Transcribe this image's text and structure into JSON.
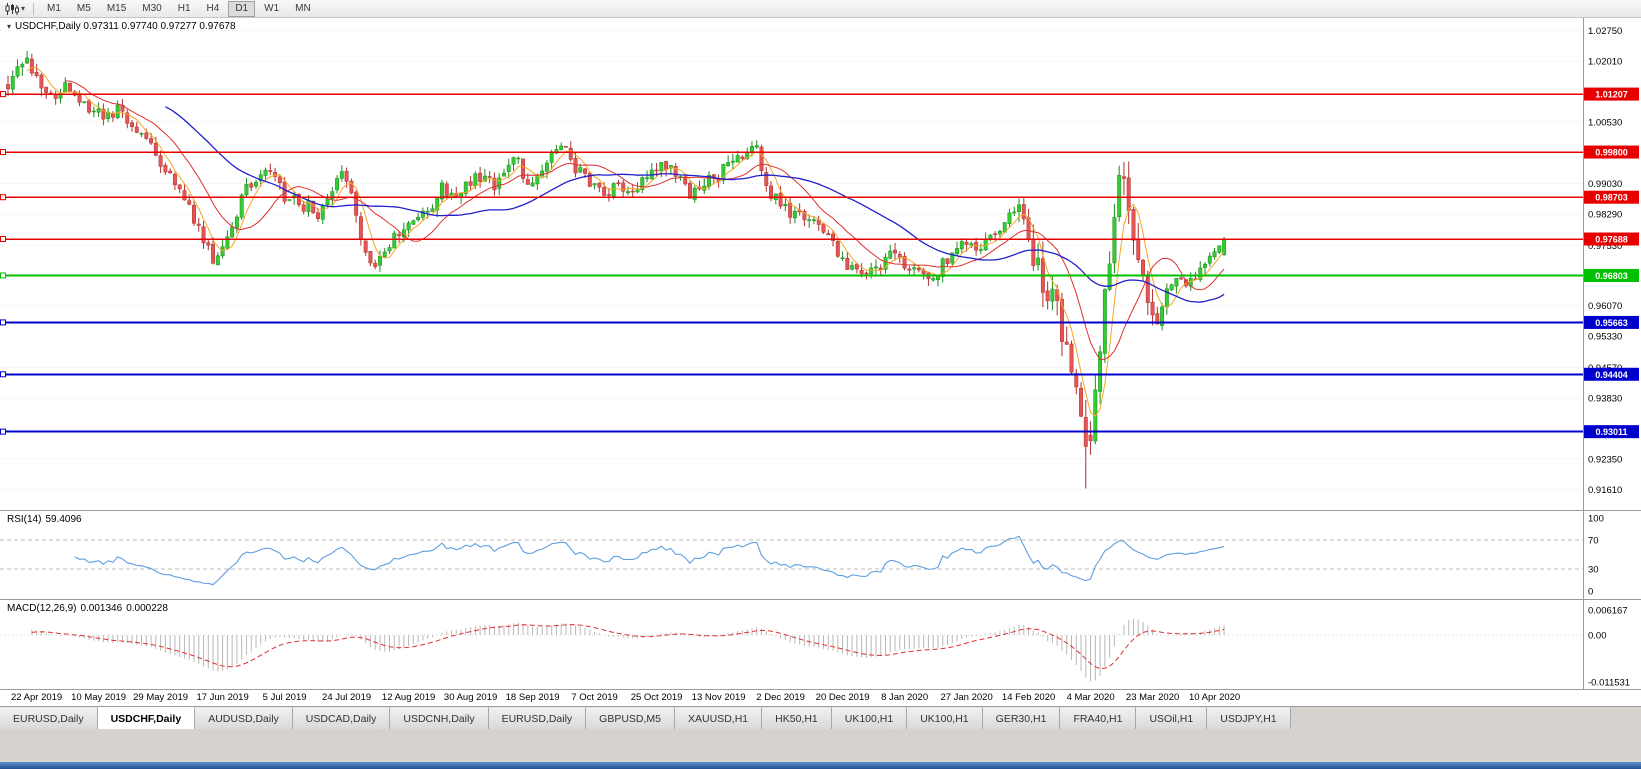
{
  "toolbar": {
    "timeframes": [
      "M1",
      "M5",
      "M15",
      "M30",
      "H1",
      "H4",
      "D1",
      "W1",
      "MN"
    ],
    "active": "D1",
    "chart_type_icon": "candlestick-chart-icon",
    "dropdown_icon": "▾"
  },
  "main_chart": {
    "collapse_icon": "▾",
    "title": "USDCHF,Daily 0.97311 0.97740 0.97277 0.97678"
  },
  "chart_data": {
    "type": "candlestick",
    "symbol": "USDCHF",
    "timeframe": "Daily",
    "ohlc_display": {
      "open": "0.97311",
      "high": "0.97740",
      "low": "0.97277",
      "close": "0.97678"
    },
    "price_range": {
      "top": 1.0286,
      "bottom": 0.914
    },
    "y_axis_ticks": [
      "1.02750",
      "1.02010",
      "1.00530",
      "0.99030",
      "0.98290",
      "0.97530",
      "0.96070",
      "0.95330",
      "0.94570",
      "0.93830",
      "0.92350",
      "0.91610"
    ],
    "levels": [
      {
        "price": 1.01207,
        "label": "1.01207",
        "color": "#e80000",
        "width": 1.5,
        "type": "resistance"
      },
      {
        "price": 0.998,
        "label": "0.99800",
        "color": "#e80000",
        "width": 1.5,
        "type": "resistance"
      },
      {
        "price": 0.98703,
        "label": "0.98703",
        "color": "#e80000",
        "width": 1.5,
        "type": "resistance"
      },
      {
        "price": 0.97688,
        "label": "0.97688",
        "color": "#e80000",
        "width": 1.5,
        "type": "resistance"
      },
      {
        "price": 0.96803,
        "label": "0.96803",
        "color": "#00c000",
        "width": 1.8,
        "type": "pivot"
      },
      {
        "price": 0.95663,
        "label": "0.95663",
        "color": "#0000cd",
        "width": 2,
        "type": "support"
      },
      {
        "price": 0.94404,
        "label": "0.94404",
        "color": "#0000cd",
        "width": 2,
        "type": "support"
      },
      {
        "price": 0.93011,
        "label": "0.93011",
        "color": "#0000cd",
        "width": 2,
        "type": "support"
      }
    ],
    "x_axis_dates": [
      "22 Apr 2019",
      "10 May 2019",
      "29 May 2019",
      "17 Jun 2019",
      "5 Jul 2019",
      "24 Jul 2019",
      "12 Aug 2019",
      "30 Aug 2019",
      "18 Sep 2019",
      "7 Oct 2019",
      "25 Oct 2019",
      "13 Nov 2019",
      "2 Dec 2019",
      "20 Dec 2019",
      "8 Jan 2020",
      "27 Jan 2020",
      "14 Feb 2020",
      "4 Mar 2020",
      "23 Mar 2020",
      "10 Apr 2020"
    ],
    "bars_per_label": 13,
    "bar_count": 256,
    "up_color": "#33cc33",
    "up_stroke": "#1a8c1a",
    "down_color": "#e65555",
    "down_stroke": "#b03030",
    "moving_averages": [
      {
        "period": 5,
        "color": "#f5a623"
      },
      {
        "period": 13,
        "color": "#e03030"
      },
      {
        "period": 34,
        "color": "#2020cc"
      }
    ],
    "price_path_anchors": [
      [
        0,
        1.015
      ],
      [
        2,
        1.0185
      ],
      [
        4,
        1.0205
      ],
      [
        6,
        1.017
      ],
      [
        9,
        1.0125
      ],
      [
        13,
        1.014
      ],
      [
        17,
        1.0085
      ],
      [
        21,
        1.006
      ],
      [
        24,
        1.009
      ],
      [
        26,
        1.004
      ],
      [
        30,
        0.9995
      ],
      [
        34,
        0.9915
      ],
      [
        37,
        0.987
      ],
      [
        40,
        0.979
      ],
      [
        43,
        0.9725
      ],
      [
        45,
        0.9745
      ],
      [
        47,
        0.98
      ],
      [
        50,
        0.989
      ],
      [
        52,
        0.9905
      ],
      [
        55,
        0.9935
      ],
      [
        58,
        0.987
      ],
      [
        62,
        0.985
      ],
      [
        65,
        0.9835
      ],
      [
        68,
        0.99
      ],
      [
        70,
        0.9945
      ],
      [
        72,
        0.989
      ],
      [
        74,
        0.976
      ],
      [
        76,
        0.972
      ],
      [
        78,
        0.9715
      ],
      [
        80,
        0.976
      ],
      [
        83,
        0.9795
      ],
      [
        86,
        0.9815
      ],
      [
        89,
        0.9855
      ],
      [
        91,
        0.989
      ],
      [
        94,
        0.9865
      ],
      [
        97,
        0.9905
      ],
      [
        100,
        0.9935
      ],
      [
        102,
        0.9895
      ],
      [
        104,
        0.9945
      ],
      [
        107,
        0.996
      ],
      [
        109,
        0.9905
      ],
      [
        112,
        0.993
      ],
      [
        114,
        0.9965
      ],
      [
        117,
        0.9985
      ],
      [
        119,
        0.9935
      ],
      [
        122,
        0.9905
      ],
      [
        125,
        0.988
      ],
      [
        128,
        0.9905
      ],
      [
        130,
        0.987
      ],
      [
        133,
        0.9905
      ],
      [
        136,
        0.9935
      ],
      [
        139,
        0.995
      ],
      [
        141,
        0.9905
      ],
      [
        143,
        0.9885
      ],
      [
        146,
        0.9905
      ],
      [
        149,
        0.9925
      ],
      [
        152,
        0.9955
      ],
      [
        155,
        0.9985
      ],
      [
        157,
        0.999
      ],
      [
        160,
        0.9875
      ],
      [
        163,
        0.984
      ],
      [
        166,
        0.982
      ],
      [
        169,
        0.9805
      ],
      [
        172,
        0.9775
      ],
      [
        175,
        0.972
      ],
      [
        178,
        0.9695
      ],
      [
        182,
        0.969
      ],
      [
        185,
        0.9725
      ],
      [
        188,
        0.9705
      ],
      [
        191,
        0.9685
      ],
      [
        195,
        0.969
      ],
      [
        198,
        0.9735
      ],
      [
        201,
        0.9755
      ],
      [
        204,
        0.9745
      ],
      [
        208,
        0.978
      ],
      [
        210,
        0.983
      ],
      [
        212,
        0.984
      ],
      [
        214,
        0.978
      ],
      [
        216,
        0.969
      ],
      [
        218,
        0.964
      ],
      [
        221,
        0.956
      ],
      [
        223,
        0.945
      ],
      [
        225,
        0.933
      ],
      [
        226,
        0.926
      ],
      [
        227,
        0.929
      ],
      [
        228,
        0.942
      ],
      [
        229,
        0.952
      ],
      [
        230,
        0.961
      ],
      [
        231,
        0.973
      ],
      [
        232,
        0.984
      ],
      [
        233,
        0.989
      ],
      [
        234,
        0.99
      ],
      [
        235,
        0.986
      ],
      [
        236,
        0.979
      ],
      [
        237,
        0.973
      ],
      [
        239,
        0.965
      ],
      [
        241,
        0.96
      ],
      [
        243,
        0.966
      ],
      [
        245,
        0.969
      ],
      [
        247,
        0.966
      ],
      [
        249,
        0.9685
      ],
      [
        251,
        0.9715
      ],
      [
        253,
        0.9745
      ],
      [
        255,
        0.9768
      ]
    ]
  },
  "rsi_panel": {
    "label": "RSI(14)",
    "value": "59.4096",
    "period": 14,
    "scale": [
      "100",
      "70",
      "30",
      "0"
    ],
    "dashed_levels": [
      70,
      30
    ],
    "line_color": "#5e9fe0"
  },
  "macd_panel": {
    "label": "MACD(12,26,9)",
    "macd_value": "0.001346",
    "signal_value": "0.000228",
    "fast": 12,
    "slow": 26,
    "signal": 9,
    "scale_top": "0.006167",
    "scale_zero": "0.00",
    "scale_bottom": "-0.011531",
    "range": {
      "top": 0.006167,
      "bottom": -0.011531
    },
    "histogram_color": "#b8b8b8",
    "signal_color": "#e03030"
  },
  "tabs": [
    {
      "label": "EURUSD,Daily",
      "active": false
    },
    {
      "label": "USDCHF,Daily",
      "active": true
    },
    {
      "label": "AUDUSD,Daily",
      "active": false
    },
    {
      "label": "USDCAD,Daily",
      "active": false
    },
    {
      "label": "USDCNH,Daily",
      "active": false
    },
    {
      "label": "EURUSD,Daily",
      "active": false
    },
    {
      "label": "GBPUSD,M5",
      "active": false
    },
    {
      "label": "XAUUSD,H1",
      "active": false
    },
    {
      "label": "HK50,H1",
      "active": false
    },
    {
      "label": "UK100,H1",
      "active": false
    },
    {
      "label": "UK100,H1",
      "active": false
    },
    {
      "label": "GER30,H1",
      "active": false
    },
    {
      "label": "FRA40,H1",
      "active": false
    },
    {
      "label": "USOil,H1",
      "active": false
    },
    {
      "label": "USDJPY,H1",
      "active": false
    }
  ]
}
